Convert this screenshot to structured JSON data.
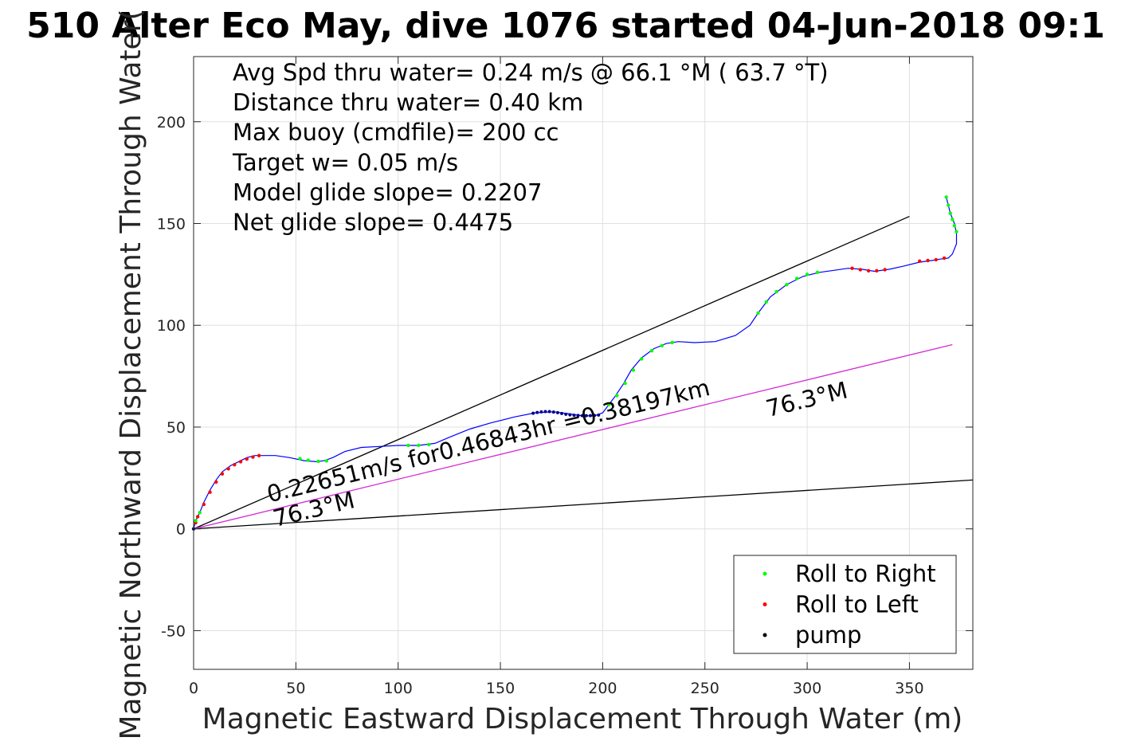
{
  "chart_data": {
    "type": "line",
    "title": "510 Alter Eco May, dive 1076 started 04-Jun-2018 09:1",
    "xlabel": "Magnetic Eastward Displacement Through Water (m)",
    "ylabel": "Magnetic Northward Displacement Through Water(",
    "xlim": [
      0,
      381
    ],
    "ylim": [
      -69,
      232
    ],
    "xticks": [
      0,
      50,
      100,
      150,
      200,
      250,
      300,
      350
    ],
    "yticks": [
      -50,
      0,
      50,
      100,
      150,
      200
    ],
    "grid": true,
    "legend_position": "bottom-right",
    "stats": [
      "Avg Spd thru water=  0.24 m/s @  66.1 °M ( 63.7 °T)",
      "Distance thru water=  0.40 km",
      "Max buoy (cmdfile)= 200 cc",
      "Target w= 0.05 m/s",
      "Model glide slope= 0.2207",
      "Net glide slope= 0.4475"
    ],
    "track": {
      "x": [
        0,
        1,
        3,
        5,
        8,
        11,
        14,
        18,
        22,
        26,
        30,
        34,
        40,
        47,
        54,
        60,
        64,
        68,
        74,
        82,
        92,
        100,
        110,
        118,
        125,
        135,
        145,
        157,
        167,
        176,
        184,
        190,
        196,
        200,
        203,
        206,
        210,
        214,
        219,
        225,
        231,
        237,
        245,
        255,
        265,
        272,
        276,
        282,
        290,
        298,
        306,
        313,
        320,
        327,
        333,
        340,
        347,
        355,
        362,
        365,
        369,
        371,
        373,
        373,
        372,
        370,
        369,
        368
      ],
      "y": [
        0,
        4,
        8,
        13,
        19,
        24,
        28,
        31,
        33,
        35,
        36,
        36,
        36,
        35,
        33.5,
        33,
        33.5,
        35,
        38,
        40,
        40.5,
        41,
        41,
        42,
        45,
        49,
        52,
        55,
        57,
        57.5,
        56.5,
        55.5,
        55.5,
        57,
        61,
        65,
        71,
        78,
        84,
        88.5,
        91,
        92,
        91.5,
        92,
        95,
        100,
        106,
        114,
        120,
        124,
        126,
        127,
        128,
        127.5,
        126.5,
        127.5,
        129,
        131,
        132,
        132.5,
        133,
        135,
        140,
        145,
        150,
        155,
        159,
        163
      ]
    },
    "marker_points": {
      "roll_to_right": [
        [
          0,
          0
        ],
        [
          1,
          4
        ],
        [
          3,
          8
        ],
        [
          52,
          34.5
        ],
        [
          56,
          33.7
        ],
        [
          61,
          33.2
        ],
        [
          65,
          33.4
        ],
        [
          105,
          41
        ],
        [
          110,
          41
        ],
        [
          115,
          41.4
        ],
        [
          203,
          61
        ],
        [
          207,
          65.5
        ],
        [
          211,
          71.5
        ],
        [
          215,
          78
        ],
        [
          219,
          83.5
        ],
        [
          224,
          87.5
        ],
        [
          229,
          90
        ],
        [
          234,
          91.5
        ],
        [
          276,
          106
        ],
        [
          280,
          111.5
        ],
        [
          285,
          116.5
        ],
        [
          290,
          120
        ],
        [
          295,
          123
        ],
        [
          300,
          125
        ],
        [
          305,
          126
        ],
        [
          368,
          163
        ],
        [
          369,
          159
        ],
        [
          370,
          155
        ],
        [
          371,
          152
        ],
        [
          372,
          149
        ],
        [
          373,
          146
        ]
      ],
      "roll_to_left": [
        [
          0,
          0
        ],
        [
          1,
          3
        ],
        [
          2,
          6
        ],
        [
          5,
          12
        ],
        [
          8,
          18
        ],
        [
          11,
          23
        ],
        [
          14,
          27
        ],
        [
          17,
          29.5
        ],
        [
          20,
          31.5
        ],
        [
          23,
          33
        ],
        [
          26,
          34.3
        ],
        [
          29,
          35.3
        ],
        [
          32,
          36
        ],
        [
          322,
          128
        ],
        [
          326,
          127.3
        ],
        [
          330,
          126.8
        ],
        [
          334,
          126.8
        ],
        [
          338,
          127.3
        ],
        [
          355,
          131.5
        ],
        [
          359,
          131.8
        ],
        [
          363,
          132.2
        ],
        [
          367,
          133
        ]
      ],
      "pump": [
        [
          0,
          0
        ],
        [
          166,
          56.8
        ],
        [
          168,
          57.2
        ],
        [
          170,
          57.5
        ],
        [
          172,
          57.6
        ],
        [
          174,
          57.6
        ],
        [
          176,
          57.4
        ],
        [
          178,
          57.1
        ],
        [
          180,
          56.7
        ],
        [
          182,
          56.3
        ],
        [
          184,
          56
        ],
        [
          186,
          55.8
        ],
        [
          188,
          55.7
        ],
        [
          190,
          55.6
        ],
        [
          192,
          55.6
        ],
        [
          194,
          55.6
        ],
        [
          196,
          55.7
        ],
        [
          198,
          55.9
        ]
      ]
    },
    "reference_lines": [
      {
        "from": [
          0,
          0
        ],
        "to": [
          350,
          153.5
        ],
        "color": "#000000",
        "label": ""
      },
      {
        "from": [
          0,
          0
        ],
        "to": [
          381,
          24
        ],
        "color": "#000000",
        "label": ""
      },
      {
        "from": [
          0,
          0
        ],
        "to": [
          371,
          90.5
        ],
        "color": "#d42ad4",
        "label": ""
      }
    ],
    "annotations": [
      {
        "text": "0.22651m/s for0.46843hr =0.38197km",
        "x": 37,
        "y": 13,
        "angle_deg": 13.7
      },
      {
        "text": "76.3°M",
        "x": 40,
        "y": 1,
        "angle_deg": 13.7
      },
      {
        "text": "76.3°M",
        "x": 281,
        "y": 55,
        "angle_deg": 13.7
      }
    ],
    "legend": [
      {
        "label": "Roll to Right",
        "color": "#00ff00"
      },
      {
        "label": "Roll to Left",
        "color": "#ff0000"
      },
      {
        "label": "pump",
        "color": "#000000"
      }
    ],
    "colors": {
      "track": "#0000ff",
      "grid": "#e0e0e0",
      "axis": "#262626",
      "track_dots": "#00008b"
    }
  }
}
